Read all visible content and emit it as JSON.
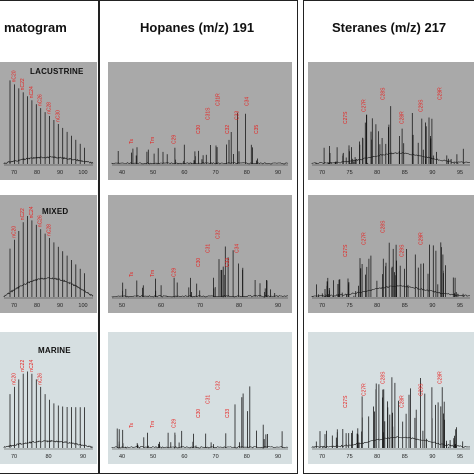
{
  "columns": [
    {
      "header": "matogram"
    },
    {
      "header": "Hopanes (m/z) 191"
    },
    {
      "header": "Steranes (m/z) 217"
    }
  ],
  "rows": [
    {
      "label": "LACUSTRINE",
      "bg": "#a9a9a9"
    },
    {
      "label": "MIXED",
      "bg": "#a9a9a9"
    },
    {
      "label": "MARINE",
      "bg": "#d6dfe1"
    }
  ],
  "colors": {
    "trace": "#1a1a1a",
    "peak_label": "#e8201e"
  },
  "chart_data": [
    {
      "type": "line",
      "panel": "chromatogram-lacustrine",
      "x_ticks": [
        "70",
        "80",
        "90",
        "100"
      ],
      "peak_labels": [
        "nC20",
        "nC22",
        "nC24",
        "nC26",
        "nC28",
        "nC30"
      ]
    },
    {
      "type": "line",
      "panel": "hopanes-lacustrine",
      "x_ticks": [
        "40",
        "50",
        "60",
        "70",
        "80",
        "90"
      ],
      "peak_labels": [
        "Ts",
        "Tm",
        "C29",
        "C30",
        "C31S",
        "C31R",
        "C32",
        "C33",
        "C34",
        "C35"
      ]
    },
    {
      "type": "line",
      "panel": "steranes-lacustrine",
      "x_ticks": [
        "70",
        "75",
        "80",
        "85",
        "90",
        "95"
      ],
      "peak_labels": [
        "C27S",
        "C27R",
        "C28S",
        "C28R",
        "C29S",
        "C29R"
      ]
    },
    {
      "type": "line",
      "panel": "chromatogram-mixed",
      "x_ticks": [
        "70",
        "80",
        "90",
        "100"
      ],
      "peak_labels": [
        "nC20",
        "nC22",
        "nC24",
        "nC26",
        "nC28"
      ]
    },
    {
      "type": "line",
      "panel": "hopanes-mixed",
      "x_ticks": [
        "50",
        "60",
        "70",
        "80",
        "90"
      ],
      "peak_labels": [
        "Ts",
        "Tm",
        "C29",
        "C30",
        "C31",
        "C32",
        "C33",
        "C34"
      ]
    },
    {
      "type": "line",
      "panel": "steranes-mixed",
      "x_ticks": [
        "70",
        "75",
        "80",
        "85",
        "90",
        "95"
      ],
      "peak_labels": [
        "C27S",
        "C27R",
        "C28S",
        "C29S",
        "C29R"
      ]
    },
    {
      "type": "line",
      "panel": "chromatogram-marine",
      "x_ticks": [
        "70",
        "80",
        "90"
      ],
      "peak_labels": [
        "nC20",
        "nC22",
        "nC24",
        "nC26"
      ]
    },
    {
      "type": "line",
      "panel": "hopanes-marine",
      "x_ticks": [
        "40",
        "50",
        "60",
        "70",
        "80",
        "90"
      ],
      "peak_labels": [
        "Ts",
        "Tm",
        "C29",
        "C30",
        "C31",
        "C32",
        "C33"
      ]
    },
    {
      "type": "line",
      "panel": "steranes-marine",
      "x_ticks": [
        "70",
        "75",
        "80",
        "85",
        "90",
        "95"
      ],
      "peak_labels": [
        "C27S",
        "C27R",
        "C28S",
        "C28R",
        "C29S",
        "C29R"
      ]
    }
  ]
}
